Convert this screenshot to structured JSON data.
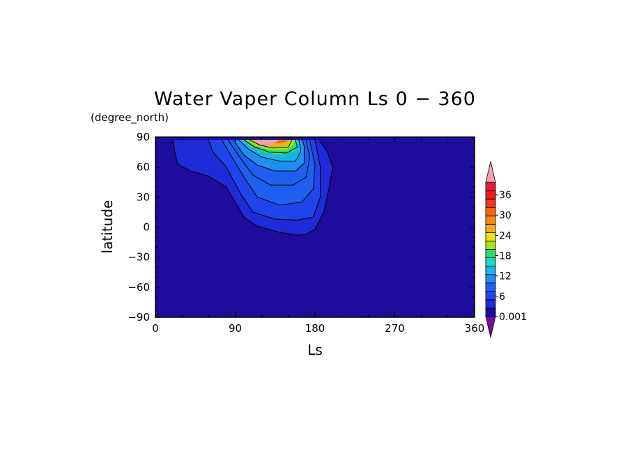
{
  "chart_data": {
    "type": "heatmap",
    "title": "Water Vaper Column Ls 0 − 360",
    "units_label": "(degree_north)",
    "xlabel": "Ls",
    "ylabel": "latitude",
    "xlim": [
      0,
      360
    ],
    "ylim": [
      -90,
      90
    ],
    "x_ticks": [
      "0",
      "90",
      "180",
      "270",
      "360"
    ],
    "y_ticks": [
      "90",
      "60",
      "30",
      "0",
      "−30",
      "−60",
      "−90"
    ],
    "background_color": "#1e0c9c",
    "colorbar": {
      "tick_labels": [
        "36",
        "30",
        "24",
        "18",
        "12",
        "6",
        "0.001"
      ],
      "colors": [
        "#1e0c9c",
        "#1e2bd6",
        "#1f45ea",
        "#1f5fed",
        "#1f8ef0",
        "#15b6f0",
        "#1fd7c9",
        "#30dc64",
        "#a2e618",
        "#f0e00f",
        "#f0b00f",
        "#f58a0f",
        "#f5640f",
        "#ef3a18",
        "#ea1c1c",
        "#e21c3c"
      ],
      "under_color": "#7010a0",
      "over_color": "#f0a0a8"
    },
    "contour_lines": [
      {
        "level": 2,
        "points": [
          [
            20,
            87
          ],
          [
            22,
            75
          ],
          [
            25,
            63
          ],
          [
            40,
            56
          ],
          [
            60,
            51
          ],
          [
            80,
            40
          ],
          [
            90,
            25
          ],
          [
            100,
            10
          ],
          [
            115,
            1
          ],
          [
            140,
            -5
          ],
          [
            160,
            -8
          ],
          [
            170,
            -7
          ],
          [
            180,
            -2
          ],
          [
            190,
            15
          ],
          [
            196,
            40
          ],
          [
            200,
            60
          ],
          [
            194,
            75
          ],
          [
            185,
            87
          ]
        ]
      },
      {
        "level": 4,
        "points": [
          [
            60,
            87
          ],
          [
            65,
            75
          ],
          [
            80,
            60
          ],
          [
            95,
            35
          ],
          [
            110,
            15
          ],
          [
            135,
            8
          ],
          [
            160,
            7
          ],
          [
            178,
            10
          ],
          [
            186,
            30
          ],
          [
            186,
            60
          ],
          [
            180,
            87
          ]
        ]
      },
      {
        "level": 6,
        "points": [
          [
            75,
            87
          ],
          [
            85,
            72
          ],
          [
            100,
            50
          ],
          [
            115,
            30
          ],
          [
            140,
            22
          ],
          [
            165,
            25
          ],
          [
            178,
            38
          ],
          [
            180,
            62
          ],
          [
            174,
            87
          ]
        ]
      },
      {
        "level": 8,
        "points": [
          [
            82,
            87
          ],
          [
            95,
            70
          ],
          [
            110,
            52
          ],
          [
            130,
            42
          ],
          [
            155,
            42
          ],
          [
            170,
            50
          ],
          [
            174,
            70
          ],
          [
            170,
            87
          ]
        ]
      },
      {
        "level": 10,
        "points": [
          [
            88,
            87
          ],
          [
            100,
            72
          ],
          [
            115,
            62
          ],
          [
            135,
            56
          ],
          [
            158,
            56
          ],
          [
            168,
            64
          ],
          [
            168,
            80
          ],
          [
            166,
            87
          ]
        ]
      },
      {
        "level": 14,
        "points": [
          [
            94,
            87
          ],
          [
            105,
            78
          ],
          [
            120,
            70
          ],
          [
            140,
            66
          ],
          [
            158,
            66
          ],
          [
            164,
            76
          ],
          [
            162,
            87
          ]
        ]
      },
      {
        "level": 20,
        "points": [
          [
            100,
            87
          ],
          [
            112,
            80
          ],
          [
            128,
            75
          ],
          [
            148,
            74
          ],
          [
            160,
            80
          ],
          [
            158,
            87
          ]
        ]
      },
      {
        "level": 28,
        "points": [
          [
            106,
            87
          ],
          [
            118,
            82
          ],
          [
            132,
            79
          ],
          [
            150,
            80
          ],
          [
            154,
            87
          ]
        ]
      }
    ],
    "filled_regions": [
      {
        "level": 2,
        "points": [
          [
            20,
            87
          ],
          [
            22,
            75
          ],
          [
            25,
            63
          ],
          [
            40,
            56
          ],
          [
            60,
            51
          ],
          [
            80,
            40
          ],
          [
            90,
            25
          ],
          [
            100,
            10
          ],
          [
            115,
            1
          ],
          [
            140,
            -5
          ],
          [
            160,
            -8
          ],
          [
            170,
            -7
          ],
          [
            180,
            -2
          ],
          [
            190,
            15
          ],
          [
            196,
            40
          ],
          [
            200,
            60
          ],
          [
            194,
            75
          ],
          [
            185,
            87
          ]
        ]
      },
      {
        "level": 4,
        "points": [
          [
            60,
            87
          ],
          [
            65,
            75
          ],
          [
            80,
            60
          ],
          [
            95,
            35
          ],
          [
            110,
            15
          ],
          [
            135,
            8
          ],
          [
            160,
            7
          ],
          [
            178,
            10
          ],
          [
            186,
            30
          ],
          [
            186,
            60
          ],
          [
            180,
            87
          ]
        ]
      },
      {
        "level": 6,
        "points": [
          [
            75,
            87
          ],
          [
            85,
            72
          ],
          [
            100,
            50
          ],
          [
            115,
            30
          ],
          [
            140,
            22
          ],
          [
            165,
            25
          ],
          [
            178,
            38
          ],
          [
            180,
            62
          ],
          [
            174,
            87
          ]
        ]
      },
      {
        "level": 8,
        "points": [
          [
            82,
            87
          ],
          [
            95,
            70
          ],
          [
            110,
            52
          ],
          [
            130,
            42
          ],
          [
            155,
            42
          ],
          [
            170,
            50
          ],
          [
            174,
            70
          ],
          [
            170,
            87
          ]
        ]
      },
      {
        "level": 10,
        "points": [
          [
            88,
            87
          ],
          [
            100,
            72
          ],
          [
            115,
            62
          ],
          [
            135,
            56
          ],
          [
            158,
            56
          ],
          [
            168,
            64
          ],
          [
            168,
            80
          ],
          [
            166,
            87
          ]
        ]
      },
      {
        "level": 14,
        "points": [
          [
            94,
            87
          ],
          [
            105,
            78
          ],
          [
            120,
            70
          ],
          [
            140,
            66
          ],
          [
            158,
            66
          ],
          [
            164,
            76
          ],
          [
            162,
            87
          ]
        ]
      },
      {
        "level": 18,
        "points": [
          [
            98,
            87
          ],
          [
            108,
            80
          ],
          [
            124,
            74
          ],
          [
            144,
            72
          ],
          [
            158,
            76
          ],
          [
            160,
            87
          ]
        ]
      },
      {
        "level": 22,
        "points": [
          [
            102,
            87
          ],
          [
            114,
            81
          ],
          [
            130,
            77
          ],
          [
            148,
            77
          ],
          [
            156,
            83
          ],
          [
            157,
            87
          ]
        ]
      },
      {
        "level": 28,
        "points": [
          [
            106,
            87
          ],
          [
            118,
            83
          ],
          [
            132,
            80
          ],
          [
            148,
            81
          ],
          [
            153,
            87
          ]
        ]
      },
      {
        "level": 34,
        "points": [
          [
            110,
            87
          ],
          [
            122,
            85
          ],
          [
            136,
            84
          ],
          [
            146,
            85
          ],
          [
            150,
            87
          ]
        ]
      },
      {
        "level": 40,
        "points": [
          [
            112,
            87
          ],
          [
            116,
            82
          ],
          [
            126,
            80
          ],
          [
            134,
            84
          ],
          [
            140,
            87
          ]
        ]
      }
    ]
  }
}
